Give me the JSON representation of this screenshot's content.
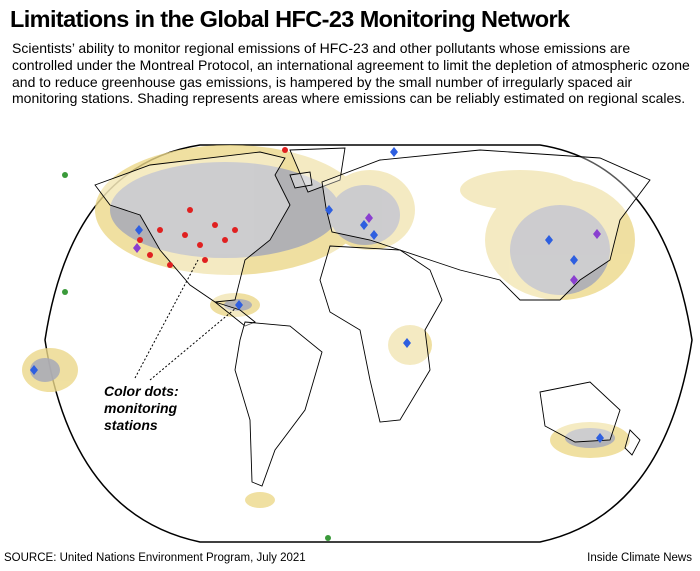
{
  "header": {
    "title": "Limitations in the Global HFC-23 Monitoring Network",
    "description": "Scientists’ ability to monitor regional emissions of HFC-23 and other pollutants whose emissions are controlled under the Montreal Protocol, an international agreement to limit the depletion of atmospheric ozone and to reduce greenhouse gas emissions, is hampered by the small number of irregularly spaced air monitoring stations. Shading represents areas where emissions can be reliably estimated on regional scales."
  },
  "map": {
    "annotation": [
      "Color dots:",
      "monitoring",
      "stations"
    ]
  },
  "footer": {
    "source": "SOURCE: United Nations Environment Program, July 2021",
    "credit": "Inside Climate News"
  }
}
